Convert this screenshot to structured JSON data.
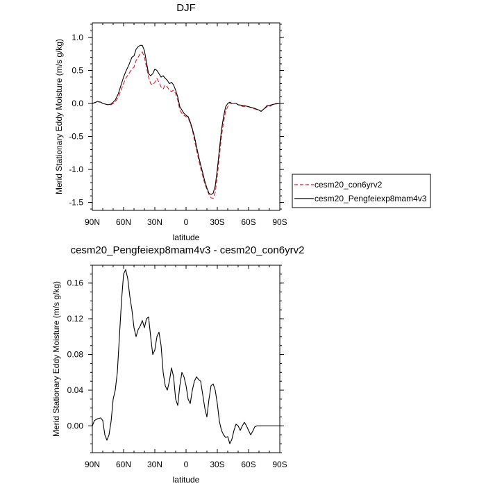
{
  "legend": {
    "entries": [
      {
        "label": "cesm20_con6yrv2",
        "color": "#e8161e",
        "dash": true
      },
      {
        "label": "cesm20_Pengfeiexp8mam4v3",
        "color": "#000000",
        "dash": false
      }
    ]
  },
  "chart_data": [
    {
      "type": "line",
      "title": "DJF",
      "xlabel": "latitude",
      "ylabel": "Merid Stationary Eddy Moisture (m/s g/kg)",
      "xlim": [
        90,
        -90
      ],
      "ylim": [
        -1.62,
        1.22
      ],
      "x_ticks": [
        90,
        60,
        30,
        0,
        -30,
        -60,
        -90
      ],
      "x_tick_labels": [
        "90N",
        "60N",
        "30N",
        "0",
        "30S",
        "60S",
        "90S"
      ],
      "y_ticks": [
        1.0,
        0.5,
        0.0,
        -0.5,
        -1.0,
        -1.5
      ],
      "y_tick_labels": [
        "1.0",
        "0.5",
        "0.0",
        "-0.5",
        "-1.0",
        "-1.5"
      ],
      "series": [
        {
          "name": "cesm20_con6yrv2",
          "color": "#e8161e",
          "dash": true,
          "x": [
            90,
            85,
            82,
            80,
            75,
            72,
            70,
            68,
            65,
            62,
            60,
            58,
            55,
            52,
            50,
            48,
            46,
            44,
            42,
            40,
            38,
            36,
            34,
            32,
            30,
            28,
            26,
            24,
            22,
            20,
            18,
            16,
            14,
            12,
            10,
            8,
            6,
            4,
            2,
            0,
            -2,
            -4,
            -6,
            -8,
            -10,
            -12,
            -14,
            -16,
            -18,
            -20,
            -22,
            -24,
            -26,
            -28,
            -30,
            -32,
            -34,
            -36,
            -38,
            -40,
            -42,
            -44,
            -46,
            -48,
            -50,
            -55,
            -60,
            -65,
            -70,
            -72,
            -75,
            -78,
            -80,
            -85,
            -90
          ],
          "y": [
            0.0,
            0.02,
            0.02,
            0.0,
            -0.02,
            -0.02,
            0.0,
            0.02,
            0.1,
            0.22,
            0.3,
            0.38,
            0.45,
            0.52,
            0.55,
            0.65,
            0.7,
            0.75,
            0.78,
            0.7,
            0.55,
            0.4,
            0.3,
            0.28,
            0.32,
            0.38,
            0.32,
            0.25,
            0.22,
            0.28,
            0.25,
            0.2,
            0.18,
            0.2,
            0.15,
            0.05,
            -0.1,
            -0.15,
            -0.18,
            -0.2,
            -0.22,
            -0.3,
            -0.4,
            -0.55,
            -0.7,
            -0.85,
            -0.98,
            -1.1,
            -1.22,
            -1.3,
            -1.38,
            -1.43,
            -1.44,
            -1.35,
            -1.1,
            -0.8,
            -0.5,
            -0.28,
            -0.12,
            -0.05,
            0.0,
            0.0,
            0.0,
            0.0,
            -0.02,
            -0.05,
            -0.05,
            -0.08,
            -0.1,
            -0.12,
            -0.08,
            -0.05,
            -0.05,
            0.0,
            0.0
          ]
        },
        {
          "name": "cesm20_Pengfeiexp8mam4v3",
          "color": "#000000",
          "dash": false,
          "x": [
            90,
            85,
            82,
            80,
            75,
            72,
            70,
            68,
            65,
            62,
            60,
            58,
            55,
            52,
            50,
            48,
            46,
            44,
            42,
            40,
            38,
            36,
            34,
            32,
            30,
            28,
            26,
            24,
            22,
            20,
            18,
            16,
            14,
            12,
            10,
            8,
            6,
            4,
            2,
            0,
            -2,
            -4,
            -6,
            -8,
            -10,
            -12,
            -14,
            -16,
            -18,
            -20,
            -22,
            -24,
            -26,
            -28,
            -30,
            -32,
            -34,
            -36,
            -38,
            -40,
            -42,
            -44,
            -46,
            -48,
            -50,
            -55,
            -60,
            -65,
            -70,
            -72,
            -75,
            -78,
            -80,
            -85,
            -90
          ],
          "y": [
            0.0,
            0.03,
            0.02,
            0.0,
            -0.02,
            -0.01,
            0.02,
            0.05,
            0.15,
            0.3,
            0.4,
            0.48,
            0.58,
            0.7,
            0.72,
            0.82,
            0.86,
            0.88,
            0.88,
            0.8,
            0.62,
            0.45,
            0.42,
            0.45,
            0.52,
            0.5,
            0.45,
            0.4,
            0.42,
            0.38,
            0.35,
            0.3,
            0.32,
            0.28,
            0.2,
            0.1,
            -0.05,
            -0.1,
            -0.15,
            -0.18,
            -0.2,
            -0.28,
            -0.38,
            -0.5,
            -0.65,
            -0.8,
            -0.93,
            -1.05,
            -1.18,
            -1.28,
            -1.36,
            -1.38,
            -1.36,
            -1.25,
            -1.0,
            -0.7,
            -0.4,
            -0.2,
            -0.05,
            0.0,
            0.02,
            0.0,
            0.0,
            0.0,
            -0.02,
            -0.03,
            -0.05,
            -0.07,
            -0.1,
            -0.12,
            -0.08,
            -0.03,
            -0.03,
            -0.01,
            0.0
          ]
        }
      ]
    },
    {
      "type": "line",
      "title": "cesm20_Pengfeiexp8mam4v3 - cesm20_con6yrv2",
      "xlabel": "latitude",
      "ylabel": "Merid Stationary Eddy Moisture (m/s g/kg)",
      "xlim": [
        90,
        -90
      ],
      "ylim": [
        -0.03,
        0.18
      ],
      "x_ticks": [
        90,
        60,
        30,
        0,
        -30,
        -60,
        -90
      ],
      "x_tick_labels": [
        "90N",
        "60N",
        "30N",
        "0",
        "30S",
        "60S",
        "90S"
      ],
      "y_ticks": [
        0.16,
        0.12,
        0.08,
        0.04,
        0.0
      ],
      "y_tick_labels": [
        "0.16",
        "0.12",
        "0.08",
        "0.04",
        "0.00"
      ],
      "series": [
        {
          "color": "#000000",
          "dash": false,
          "x": [
            90,
            88,
            85,
            82,
            80,
            78,
            76,
            74,
            72,
            70,
            68,
            66,
            64,
            62,
            60,
            58,
            56,
            54,
            52,
            50,
            48,
            46,
            44,
            42,
            40,
            38,
            36,
            34,
            32,
            30,
            28,
            26,
            24,
            22,
            20,
            18,
            16,
            14,
            12,
            10,
            8,
            6,
            4,
            2,
            0,
            -2,
            -4,
            -6,
            -8,
            -10,
            -12,
            -14,
            -16,
            -18,
            -20,
            -22,
            -24,
            -26,
            -28,
            -30,
            -32,
            -34,
            -36,
            -38,
            -40,
            -42,
            -44,
            -46,
            -48,
            -50,
            -52,
            -54,
            -56,
            -58,
            -60,
            -62,
            -64,
            -66,
            -68,
            -70,
            -72,
            -74,
            -76,
            -78,
            -80,
            -82,
            -84,
            -86,
            -88,
            -90
          ],
          "y": [
            0.0,
            0.006,
            0.008,
            0.009,
            0.006,
            -0.01,
            -0.016,
            -0.01,
            0.005,
            0.03,
            0.04,
            0.06,
            0.1,
            0.14,
            0.17,
            0.175,
            0.165,
            0.145,
            0.13,
            0.11,
            0.1,
            0.108,
            0.112,
            0.118,
            0.11,
            0.12,
            0.122,
            0.1,
            0.08,
            0.085,
            0.1,
            0.105,
            0.09,
            0.06,
            0.045,
            0.04,
            0.05,
            0.065,
            0.055,
            0.03,
            0.023,
            0.045,
            0.06,
            0.055,
            0.045,
            0.03,
            0.025,
            0.04,
            0.05,
            0.055,
            0.052,
            0.05,
            0.035,
            0.02,
            0.01,
            0.03,
            0.045,
            0.047,
            0.04,
            0.025,
            0.005,
            -0.005,
            -0.01,
            -0.013,
            -0.012,
            -0.02,
            -0.015,
            -0.005,
            0.002,
            0.0,
            -0.005,
            0.0,
            0.004,
            0.0,
            -0.005,
            -0.01,
            -0.006,
            -0.001,
            0.0,
            0.0,
            0.0,
            0.0,
            0.0,
            0.0,
            0.0,
            0.0,
            0.0,
            0.0,
            0.0,
            0.0
          ]
        }
      ]
    }
  ]
}
